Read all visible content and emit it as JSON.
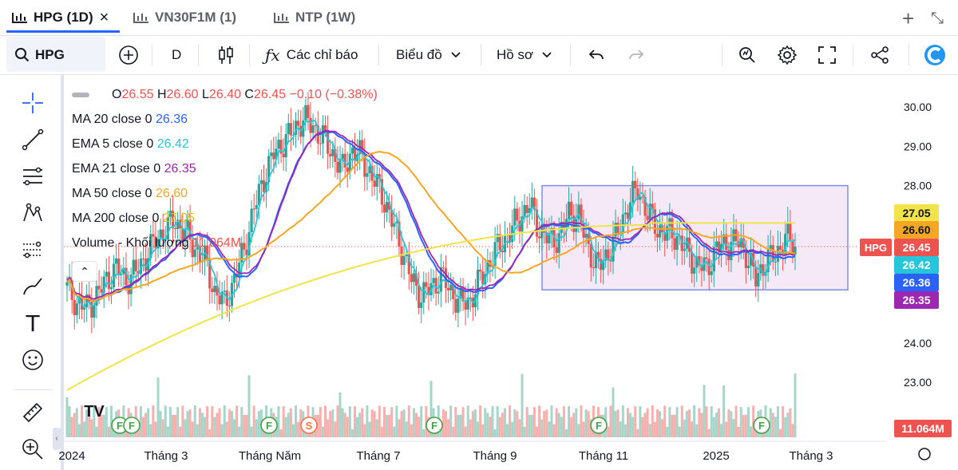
{
  "tabs": [
    {
      "label": "HPG (1D)",
      "active": true
    },
    {
      "label": "VN30F1M (1)",
      "active": false
    },
    {
      "label": "NTP (1W)",
      "active": false
    }
  ],
  "tab_close": "×",
  "tabbar_actions": {
    "add": "+",
    "collapse": "⤡"
  },
  "toolbar": {
    "symbol": "HPG",
    "interval": "D",
    "indicators_label": "Các chỉ báo",
    "chart_type_label": "Biểu đồ",
    "profile_label": "Hồ sơ"
  },
  "legend": {
    "ohlc": {
      "o_label": "O",
      "o": "26.55",
      "h_label": "H",
      "h": "26.60",
      "l_label": "L",
      "l": "26.40",
      "c_label": "C",
      "c": "26.45",
      "change": "−0.10 (−0.38%)"
    },
    "indicators": [
      {
        "label": "MA 20 close 0",
        "value": "26.36",
        "color": "#2962ff"
      },
      {
        "label": "EMA 5 close 0",
        "value": "26.42",
        "color": "#26c6da"
      },
      {
        "label": "EMA 21 close 0",
        "value": "26.35",
        "color": "#9c27b0"
      },
      {
        "label": "MA 50 close 0",
        "value": "26.60",
        "color": "#f5a623"
      },
      {
        "label": "MA 200 close 0",
        "value": "27.05",
        "color": "#f2e34a"
      }
    ],
    "volume": {
      "label": "Volume - Khối lượng",
      "value": "11.064M"
    }
  },
  "colors": {
    "up": "#26a69a",
    "down": "#ef5350",
    "vol_up": "#a5d6c9",
    "vol_down": "#f6b1ae",
    "rect_fill": "#f3e5f7",
    "rect_stroke": "#7b8fe8",
    "accent": "#2962ff"
  },
  "chart_data": {
    "type": "candlestick",
    "symbol": "HPG",
    "interval": "1D",
    "ylim": [
      22.5,
      30.5
    ],
    "y_ticks": [
      "30.00",
      "29.00",
      "28.00",
      "24.00",
      "23.00"
    ],
    "x_ticks": [
      "2024",
      "Tháng 3",
      "Tháng Năm",
      "Tháng 7",
      "Tháng 9",
      "Tháng 11",
      "2025",
      "Tháng 3"
    ],
    "close_series": [
      25.4,
      25.0,
      24.9,
      25.2,
      25.6,
      25.9,
      25.6,
      25.8,
      26.2,
      26.6,
      26.9,
      27.1,
      26.8,
      26.4,
      26.1,
      25.3,
      25.0,
      25.6,
      26.4,
      27.4,
      28.2,
      28.8,
      29.1,
      29.4,
      29.7,
      29.5,
      29.2,
      28.8,
      28.4,
      28.9,
      28.7,
      28.2,
      27.8,
      27.1,
      26.4,
      25.6,
      25.2,
      25.4,
      25.7,
      25.3,
      25.0,
      25.1,
      25.6,
      26.1,
      26.5,
      26.8,
      27.2,
      27.5,
      26.9,
      26.6,
      26.7,
      27.3,
      27.2,
      26.4,
      25.9,
      26.3,
      26.8,
      27.5,
      27.9,
      27.3,
      26.9,
      26.8,
      26.7,
      26.3,
      26.0,
      25.9,
      26.4,
      26.5,
      26.6,
      26.3,
      25.6,
      26.1,
      26.2,
      26.7,
      26.45
    ],
    "price_labels": [
      {
        "value": "27.05",
        "color": "#f2e34a"
      },
      {
        "value": "26.60",
        "color": "#f5a623"
      },
      {
        "value": "26.45",
        "color": "#ef5350",
        "tag": "HPG"
      },
      {
        "value": "26.42",
        "color": "#26c6da"
      },
      {
        "value": "26.36",
        "color": "#2962ff"
      },
      {
        "value": "26.35",
        "color": "#9c27b0"
      }
    ],
    "volume_label": "11.064M",
    "volume_range_note": "",
    "event_markers": [
      "F",
      "F",
      "F",
      "S",
      "F",
      "F",
      "F"
    ],
    "range_box": {
      "from_label": "Tháng 9",
      "price_high": 28.0,
      "price_low": 25.35
    }
  }
}
